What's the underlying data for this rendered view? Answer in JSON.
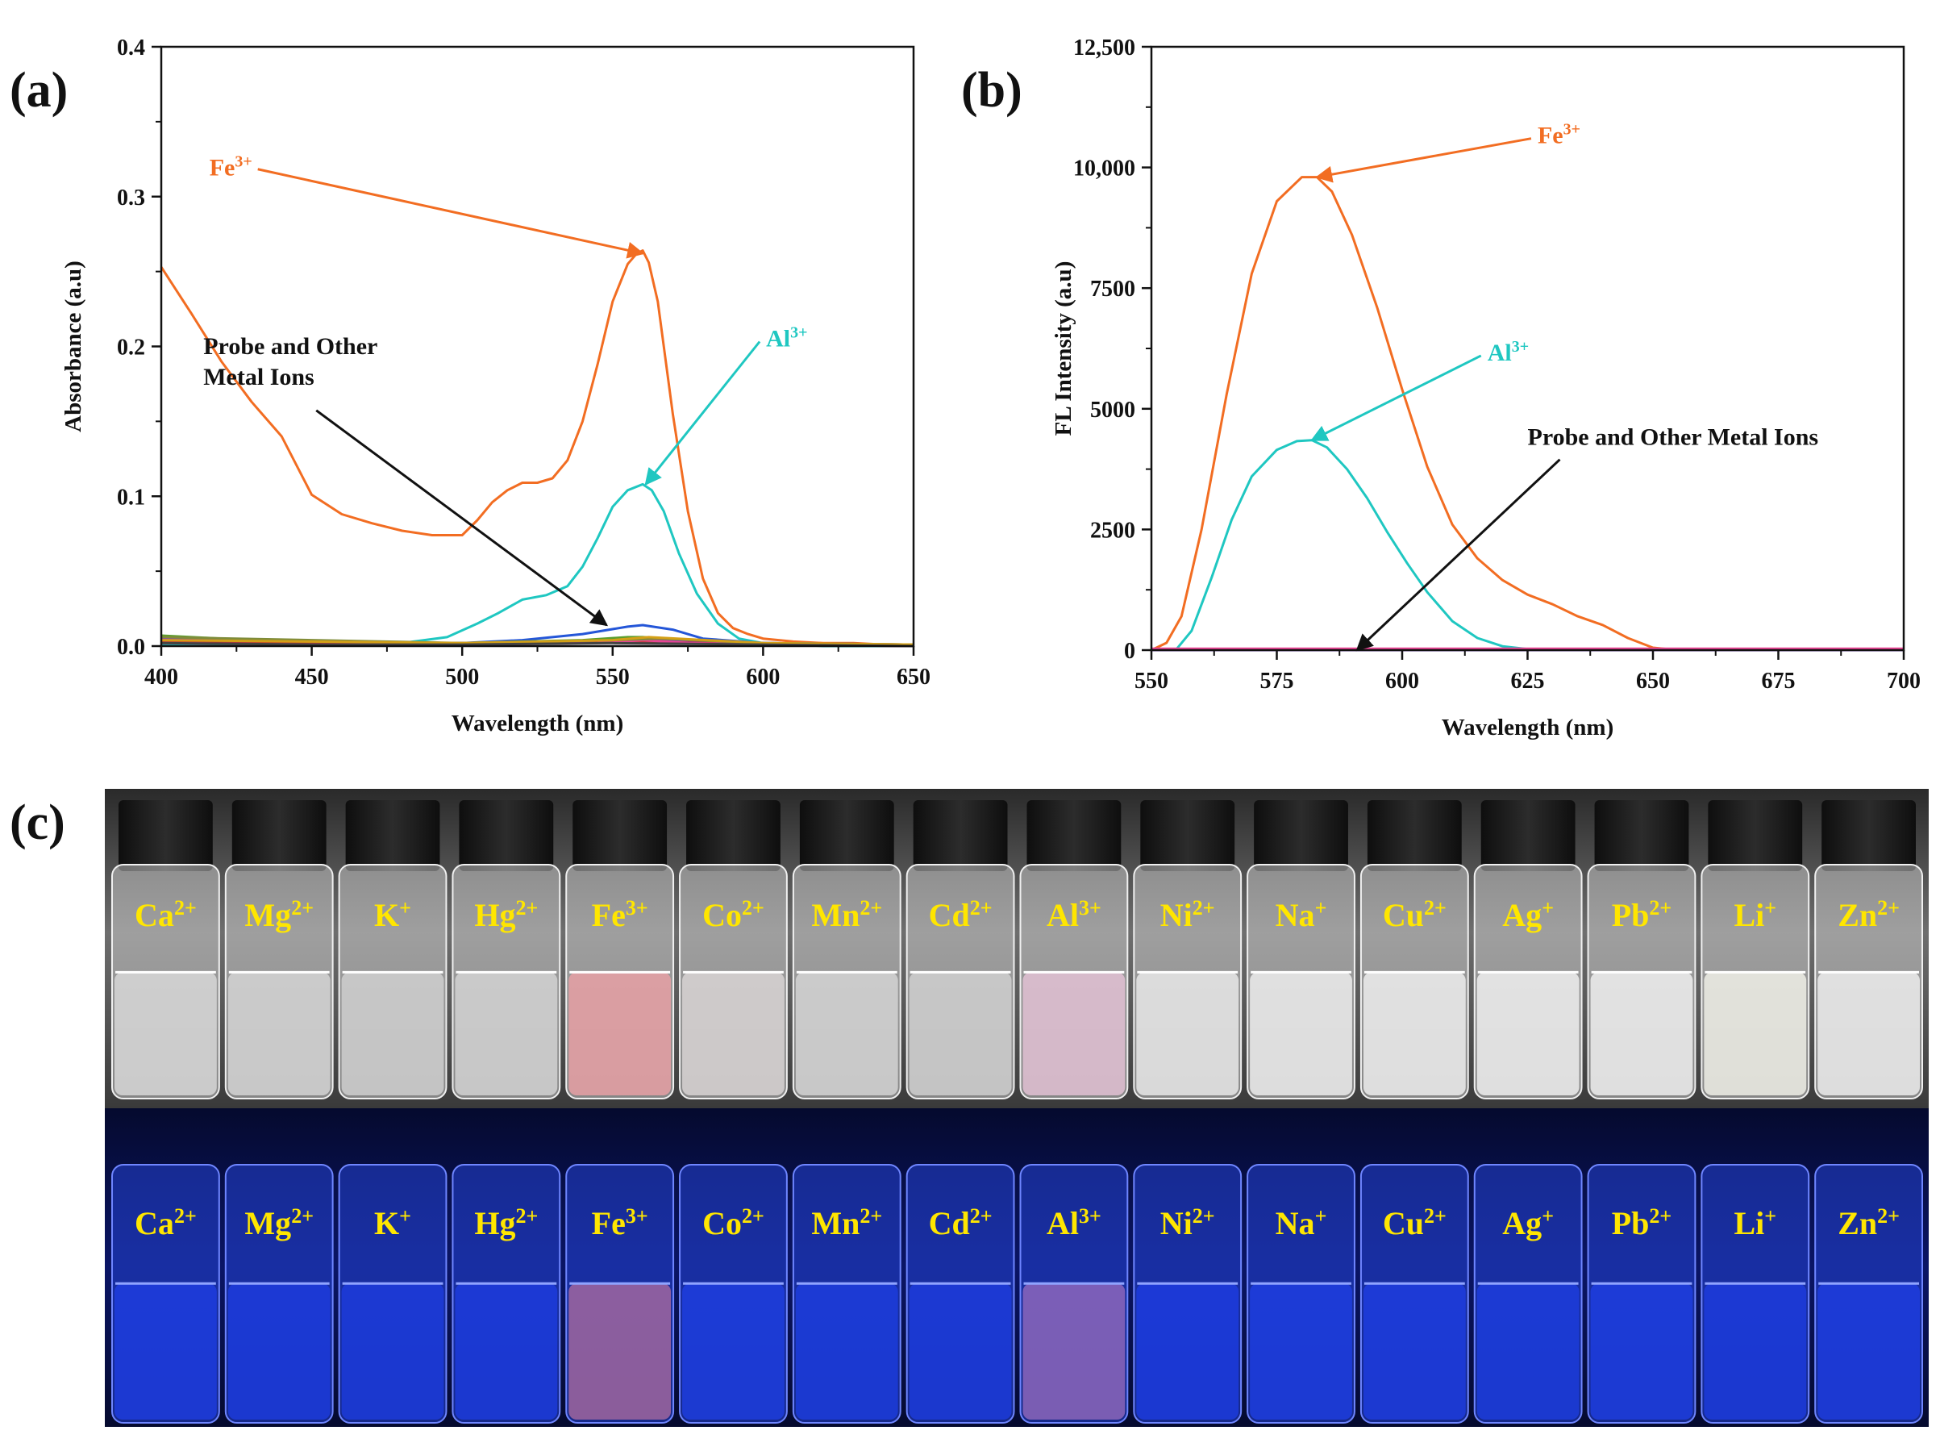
{
  "panels": {
    "a": "(a)",
    "b": "(b)",
    "c": "(c)"
  },
  "chart_data": [
    {
      "id": "a",
      "type": "line",
      "xlabel": "Wavelength (nm)",
      "ylabel": "Absorbance (a.u)",
      "xlim": [
        400,
        650
      ],
      "ylim": [
        0,
        0.4
      ],
      "xticks": [
        400,
        450,
        500,
        550,
        600,
        650
      ],
      "xtick_labels": [
        "400",
        "450",
        "500",
        "550",
        "600",
        "650"
      ],
      "yticks": [
        0.0,
        0.1,
        0.2,
        0.3,
        0.4
      ],
      "ytick_labels": [
        "0.0",
        "0.1",
        "0.2",
        "0.3",
        "0.4"
      ],
      "grid": false,
      "annotations": [
        {
          "base": "Fe",
          "sup": "3+",
          "color": "#f26d22",
          "at": [
            560,
            0.262
          ],
          "text_at": [
            416,
            0.314
          ]
        },
        {
          "base": "Al",
          "sup": "3+",
          "color": "#1fc7c1",
          "at": [
            561,
            0.108
          ],
          "text_at": [
            601,
            0.2
          ]
        },
        {
          "lines": [
            "Probe and Other",
            "Metal Ions"
          ],
          "color": "#111111",
          "at": [
            548,
            0.014
          ],
          "text_at": [
            414,
            0.195
          ]
        }
      ],
      "series": [
        {
          "color": "#f26d22",
          "x": [
            400,
            410,
            420,
            430,
            440,
            450,
            460,
            470,
            480,
            490,
            500,
            505,
            510,
            515,
            520,
            525,
            530,
            535,
            540,
            545,
            550,
            555,
            558,
            560,
            562,
            565,
            570,
            575,
            580,
            585,
            590,
            595,
            600,
            610,
            620,
            630,
            640,
            650
          ],
          "y": [
            0.253,
            0.222,
            0.19,
            0.163,
            0.14,
            0.101,
            0.088,
            0.082,
            0.077,
            0.074,
            0.074,
            0.084,
            0.096,
            0.104,
            0.109,
            0.109,
            0.112,
            0.124,
            0.15,
            0.188,
            0.23,
            0.255,
            0.262,
            0.264,
            0.256,
            0.23,
            0.155,
            0.09,
            0.045,
            0.022,
            0.012,
            0.008,
            0.005,
            0.003,
            0.002,
            0.002,
            0.001,
            0.0
          ]
        },
        {
          "color": "#1fc7c1",
          "x": [
            400,
            450,
            480,
            495,
            505,
            512,
            520,
            528,
            535,
            540,
            545,
            550,
            555,
            560,
            563,
            567,
            572,
            578,
            585,
            592,
            600,
            620,
            650
          ],
          "y": [
            0.001,
            0.001,
            0.002,
            0.006,
            0.015,
            0.022,
            0.031,
            0.034,
            0.04,
            0.053,
            0.072,
            0.093,
            0.104,
            0.108,
            0.104,
            0.09,
            0.062,
            0.035,
            0.015,
            0.005,
            0.002,
            0.0,
            0.0
          ]
        },
        {
          "color": "#2456d8",
          "x": [
            400,
            450,
            500,
            520,
            540,
            555,
            560,
            570,
            580,
            600,
            650
          ],
          "y": [
            0.004,
            0.002,
            0.002,
            0.004,
            0.008,
            0.013,
            0.014,
            0.011,
            0.005,
            0.002,
            0.001
          ]
        },
        {
          "color": "#5a9e2c",
          "x": [
            400,
            420,
            450,
            500,
            540,
            555,
            560,
            575,
            600,
            650
          ],
          "y": [
            0.007,
            0.005,
            0.003,
            0.002,
            0.004,
            0.006,
            0.006,
            0.004,
            0.002,
            0.001
          ]
        },
        {
          "color": "#8a2be2",
          "x": [
            400,
            450,
            500,
            540,
            560,
            580,
            600,
            650
          ],
          "y": [
            0.005,
            0.003,
            0.002,
            0.003,
            0.004,
            0.003,
            0.002,
            0.001
          ]
        },
        {
          "color": "#c0392b",
          "x": [
            400,
            450,
            500,
            540,
            560,
            580,
            600,
            650
          ],
          "y": [
            0.003,
            0.002,
            0.001,
            0.002,
            0.003,
            0.002,
            0.001,
            0.0
          ]
        },
        {
          "color": "#e84393",
          "x": [
            400,
            450,
            500,
            545,
            560,
            575,
            600,
            650
          ],
          "y": [
            0.002,
            0.001,
            0.001,
            0.002,
            0.004,
            0.002,
            0.001,
            0.0
          ]
        },
        {
          "color": "#7f8c3a",
          "x": [
            400,
            450,
            500,
            550,
            565,
            600,
            650
          ],
          "y": [
            0.006,
            0.004,
            0.002,
            0.004,
            0.005,
            0.002,
            0.001
          ]
        },
        {
          "color": "#d4a017",
          "x": [
            400,
            450,
            500,
            550,
            562,
            600,
            650
          ],
          "y": [
            0.004,
            0.003,
            0.002,
            0.004,
            0.006,
            0.002,
            0.001
          ]
        },
        {
          "color": "#444444",
          "x": [
            400,
            450,
            500,
            550,
            600,
            650
          ],
          "y": [
            0.002,
            0.001,
            0.001,
            0.002,
            0.001,
            0.0
          ]
        }
      ]
    },
    {
      "id": "b",
      "type": "line",
      "xlabel": "Wavelength (nm)",
      "ylabel": "FL Intensity (a.u)",
      "xlim": [
        550,
        700
      ],
      "ylim": [
        0,
        12500
      ],
      "xticks": [
        550,
        575,
        600,
        625,
        650,
        675,
        700
      ],
      "xtick_labels": [
        "550",
        "575",
        "600",
        "625",
        "650",
        "675",
        "700"
      ],
      "yticks": [
        0,
        2500,
        5000,
        7500,
        10000,
        12500
      ],
      "ytick_labels": [
        "0",
        "2500",
        "5000",
        "7500",
        "10,000",
        "12,500"
      ],
      "grid": false,
      "annotations": [
        {
          "base": "Fe",
          "sup": "3+",
          "color": "#f26d22",
          "at": [
            583,
            9800
          ],
          "text_at": [
            627,
            10500
          ]
        },
        {
          "base": "Al",
          "sup": "3+",
          "color": "#1fc7c1",
          "at": [
            582,
            4350
          ],
          "text_at": [
            617,
            6000
          ]
        },
        {
          "lines": [
            "Probe and Other Metal Ions"
          ],
          "color": "#111111",
          "at": [
            591,
            0
          ],
          "text_at": [
            625,
            4250
          ]
        }
      ],
      "series": [
        {
          "color": "#f26d22",
          "x": [
            550,
            553,
            556,
            560,
            565,
            570,
            575,
            580,
            583,
            586,
            590,
            595,
            600,
            605,
            610,
            615,
            620,
            625,
            630,
            635,
            640,
            645,
            650,
            655,
            660,
            700
          ],
          "y": [
            0,
            150,
            700,
            2500,
            5300,
            7800,
            9300,
            9800,
            9800,
            9500,
            8600,
            7100,
            5400,
            3800,
            2600,
            1900,
            1450,
            1150,
            950,
            700,
            520,
            250,
            50,
            0,
            0,
            0
          ]
        },
        {
          "color": "#1fc7c1",
          "x": [
            550,
            555,
            558,
            562,
            566,
            570,
            575,
            579,
            582,
            585,
            589,
            593,
            597,
            601,
            605,
            610,
            615,
            620,
            625,
            630,
            700
          ],
          "y": [
            0,
            20,
            400,
            1500,
            2700,
            3600,
            4150,
            4330,
            4350,
            4200,
            3750,
            3150,
            2450,
            1800,
            1200,
            600,
            250,
            80,
            20,
            0,
            0
          ]
        },
        {
          "color": "#7d4fc4",
          "x": [
            550,
            600,
            650,
            700
          ],
          "y": [
            0,
            0,
            0,
            0
          ]
        },
        {
          "color": "#e84393",
          "x": [
            550,
            600,
            650,
            700
          ],
          "y": [
            30,
            30,
            30,
            30
          ]
        }
      ]
    }
  ],
  "vials": {
    "row_colors_top": [
      "#d7d7d7",
      "#d3d3d3",
      "#cfcfcf",
      "#d2d2d2",
      "#e6a0a4",
      "#d8d4d4",
      "#d4d4d4",
      "#cfcfcf",
      "#e2c1d4",
      "#e8e8e8",
      "#ececec",
      "#ededed",
      "#efefef",
      "#eeeeee",
      "#eeeee6",
      "#ececec"
    ],
    "row_colors_bottom": [
      "#1f3fe8",
      "#1e3ee6",
      "#1d3de4",
      "#1e3ee6",
      "#b36fa0",
      "#1f40e8",
      "#1e3fe6",
      "#1d3de4",
      "#9c6fc0",
      "#1e3de8",
      "#1f40ea",
      "#1f3fe8",
      "#1e3fe6",
      "#1f40ea",
      "#1e3ee6",
      "#1f3fe8"
    ],
    "items": [
      {
        "base": "Ca",
        "sup": "2+"
      },
      {
        "base": "Mg",
        "sup": "2+"
      },
      {
        "base": "K",
        "sup": "+"
      },
      {
        "base": "Hg",
        "sup": "2+"
      },
      {
        "base": "Fe",
        "sup": "3+"
      },
      {
        "base": "Co",
        "sup": "2+"
      },
      {
        "base": "Mn",
        "sup": "2+"
      },
      {
        "base": "Cd",
        "sup": "2+"
      },
      {
        "base": "Al",
        "sup": "3+"
      },
      {
        "base": "Ni",
        "sup": "2+"
      },
      {
        "base": "Na",
        "sup": "+"
      },
      {
        "base": "Cu",
        "sup": "2+"
      },
      {
        "base": "Ag",
        "sup": "+"
      },
      {
        "base": "Pb",
        "sup": "2+"
      },
      {
        "base": "Li",
        "sup": "+"
      },
      {
        "base": "Zn",
        "sup": "2+"
      }
    ]
  }
}
